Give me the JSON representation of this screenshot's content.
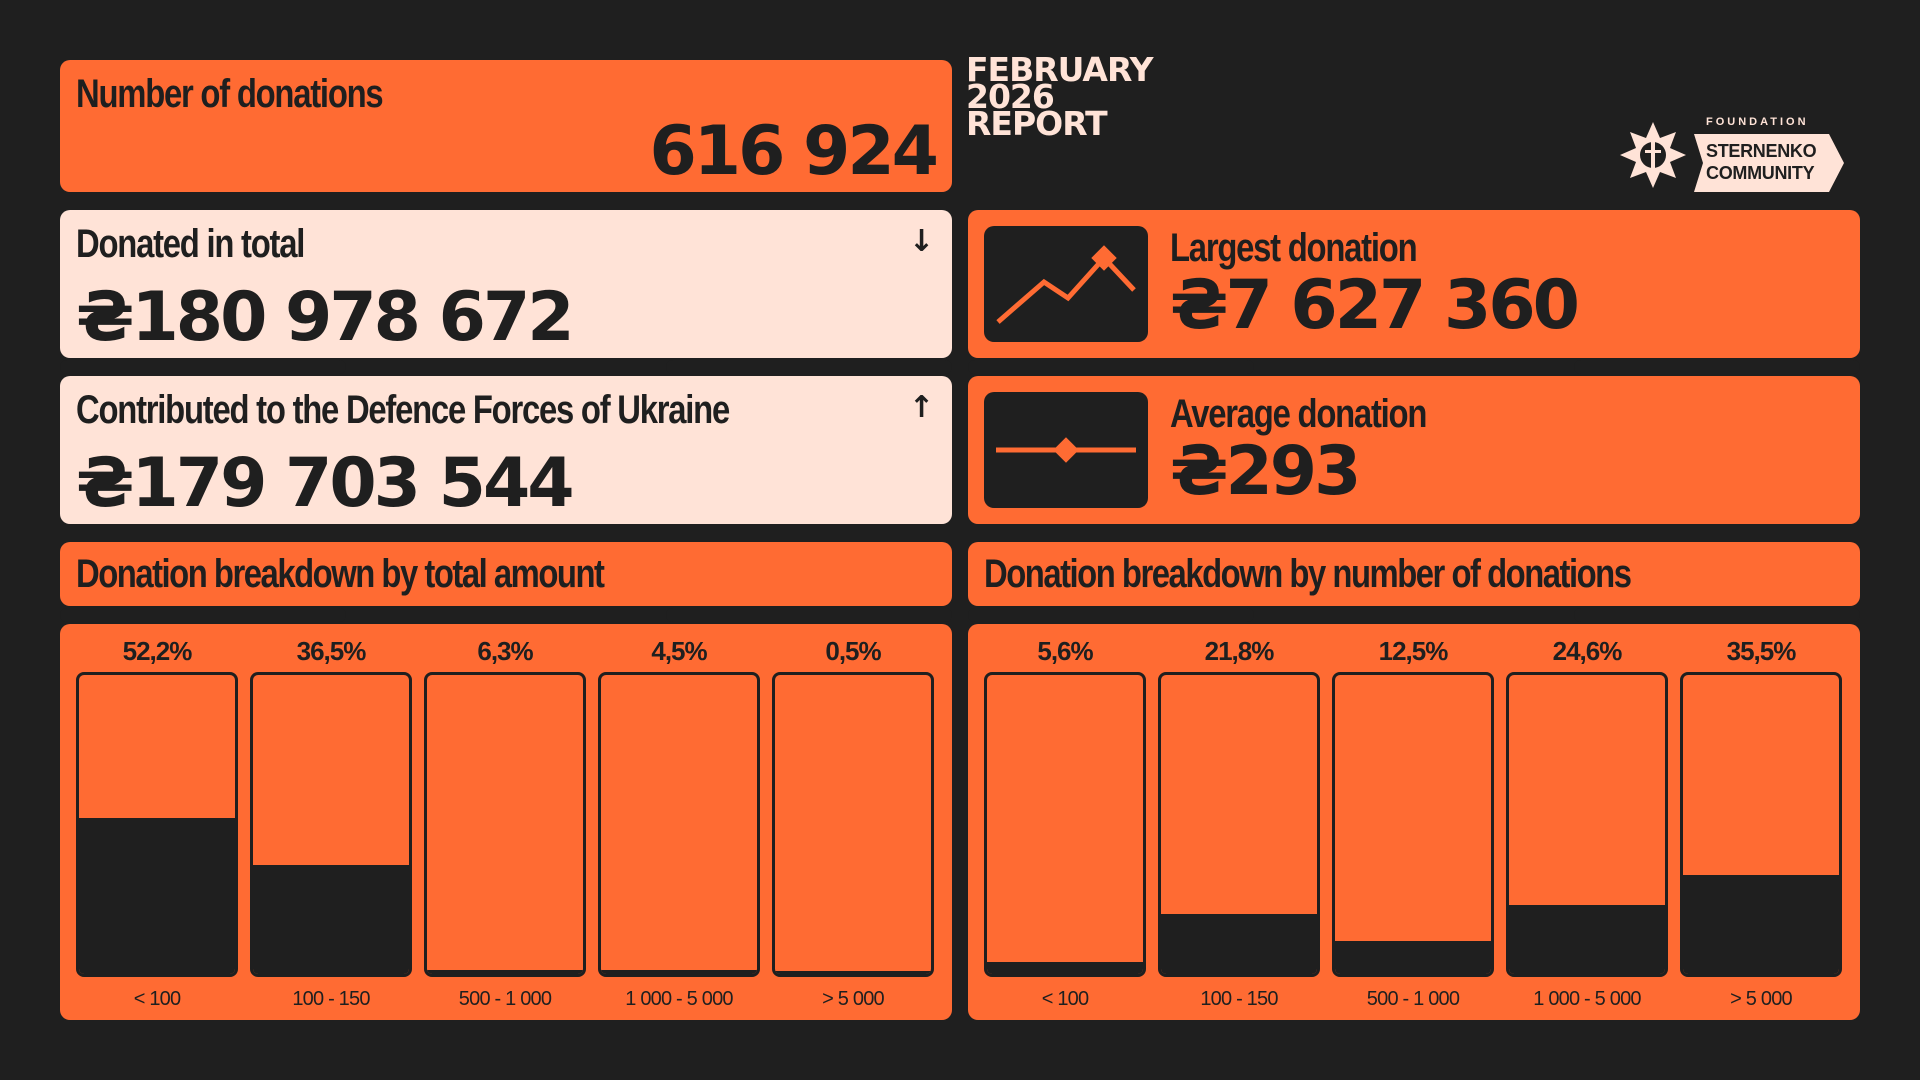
{
  "report_title": [
    "FEBRUARY",
    "2026",
    "REPORT"
  ],
  "logo": {
    "foundation": "FOUNDATION",
    "line1": "STERNENKO",
    "line2": "COMMUNITY"
  },
  "donations_count": {
    "label": "Number of donations",
    "value": "616 924"
  },
  "donated_total": {
    "label": "Donated in total",
    "value": "₴180 978 672",
    "icon": "arrow-down-icon"
  },
  "contributed": {
    "label": "Contributed to the Defence Forces of Ukraine",
    "value": "₴179 703 544",
    "icon": "arrow-up-icon"
  },
  "largest": {
    "label": "Largest donation",
    "value": "₴7 627 360",
    "icon": "rising-line-icon"
  },
  "average": {
    "label": "Average donation",
    "value": "₴293",
    "icon": "flat-line-icon"
  },
  "colors": {
    "background": "#1f1f1f",
    "orange": "#ff6b33",
    "light": "#ffe3d7"
  },
  "chart_data": [
    {
      "type": "bar",
      "title": "Donation breakdown by total amount",
      "categories": [
        "< 100",
        "100 - 150",
        "500 - 1 000",
        "1 000 - 5 000",
        "> 5 000"
      ],
      "values": [
        52.2,
        36.5,
        6.3,
        4.5,
        0.5
      ],
      "value_labels": [
        "52,2%",
        "36,5%",
        "6,3%",
        "4,5%",
        "0,5%"
      ],
      "ylim": [
        0,
        100
      ],
      "filled_values": [
        52.2,
        36.5,
        1.5,
        1.5,
        1.0
      ]
    },
    {
      "type": "bar",
      "title": "Donation breakdown by number of donations",
      "categories": [
        "< 100",
        "100 - 150",
        "500 - 1 000",
        "1 000 - 5 000",
        "> 5 000"
      ],
      "values": [
        5.6,
        21.8,
        12.5,
        24.6,
        35.5
      ],
      "value_labels": [
        "5,6%",
        "21,8%",
        "12,5%",
        "24,6%",
        "35,5%"
      ],
      "ylim": [
        0,
        100
      ],
      "filled_values": [
        4.0,
        20.0,
        11.0,
        23.0,
        33.0
      ]
    }
  ]
}
